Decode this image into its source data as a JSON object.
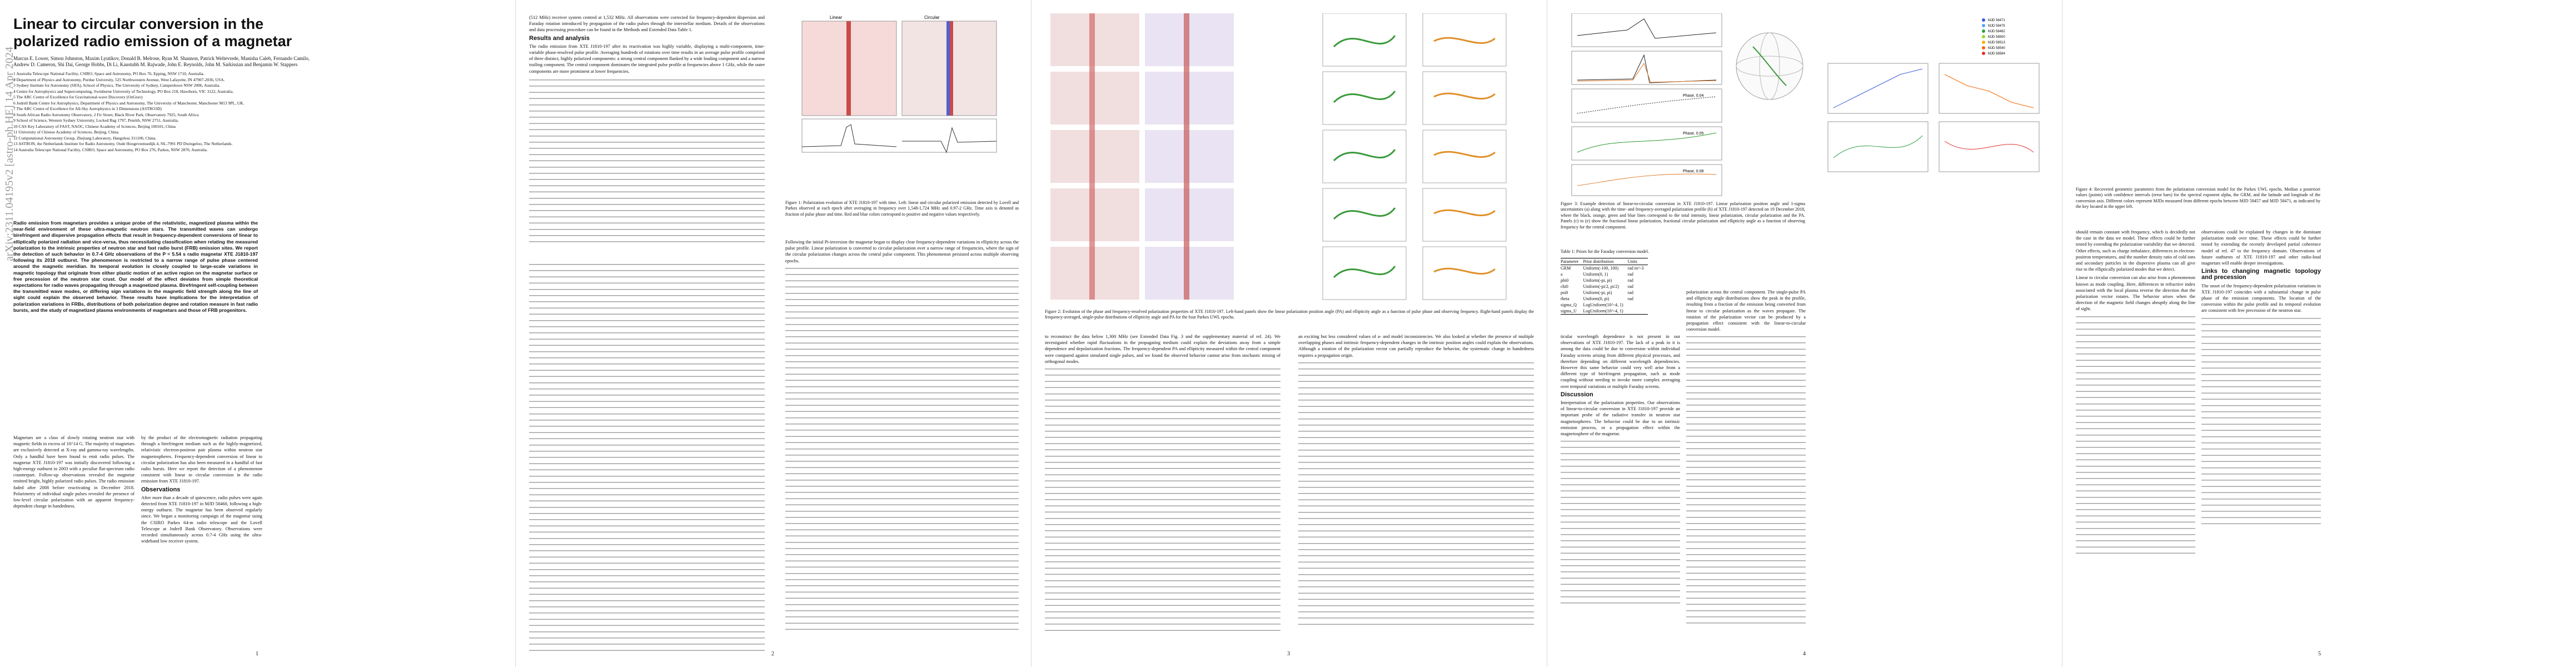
{
  "arxiv_stamp": "arXiv:2311.04195v2  [astro-ph.HE]  14 Apr 2024",
  "title": "Linear to circular conversion in the polarized radio emission of a magnetar",
  "authors": "Marcus E. Lower, Simon Johnston, Maxim Lyutikov, Donald B. Melrose, Ryan M. Shannon, Patrick Weltevrede, Manisha Caleb, Fernando Camilo, Andrew D. Cameron, Shi Dai, George Hobbs, Di Li, Kaustubh M. Rajwade, John E. Reynolds, John M. Sarkissian and Benjamin W. Stappers",
  "affiliations": [
    "Australia Telescope National Facility, CSIRO, Space and Astronomy, PO Box 76, Epping, NSW 1710, Australia.",
    "Department of Physics and Astronomy, Purdue University, 525 Northwestern Avenue, West Lafayette, IN 47907-2036, USA.",
    "Sydney Institute for Astronomy (SIfA), School of Physics, The University of Sydney, Camperdown NSW 2006, Australia.",
    "Centre for Astrophysics and Supercomputing, Swinburne University of Technology, PO Box 218, Hawthorn, VIC 3122, Australia.",
    "The ARC Centre of Excellence for Gravitational-wave Discovery (OzGrav)",
    "Jodrell Bank Centre for Astrophysics, Department of Physics and Astronomy, The University of Manchester, Manchester M13 9PL, UK.",
    "The ARC Centre of Excellence for All-Sky Astrophysics in 3 Dimensions (ASTRO3D)",
    "South African Radio Astronomy Observatory, 2 Fir Street, Black River Park, Observatory 7925, South Africa",
    "School of Science, Western Sydney University, Locked Bag 1797, Penrith, NSW 2751, Australia.",
    "CAS Key Laboratory of FAST, NAOC, Chinese Academy of Sciences, Beijing 100101, China",
    "University of Chinese Academy of Sciences, Beijing, China.",
    "Computational Astronomy Group, Zhejiang Laboratory, Hangzhou 311100, China.",
    "ASTRON, the Netherlands Institute for Radio Astronomy, Oude Hoogeveensedijk 4, NL-7991 PD Dwingeloo, The Netherlands.",
    "Australia Telescope National Facility, CSIRO, Space and Astronomy, PO Box 276, Parkes, NSW 2870, Australia."
  ],
  "abstract": "Radio emission from magnetars provides a unique probe of the relativistic, magnetized plasma within the near-field environment of these ultra-magnetic neutron stars. The transmitted waves can undergo birefringent and dispersive propagation effects that result in frequency-dependent conversions of linear to elliptically polarized radiation and vice-versa, thus necessitating classification when relating the measured polarization to the intrinsic properties of neutron star and fast radio burst (FRB) emission sites. We report the detection of such behavior in 0.7-4 GHz observations of the P = 5.54 s radio magnetar XTE J1810-197 following its 2018 outburst. The phenomenon is restricted to a narrow range of pulse phase centered around the magnetic meridian. Its temporal evolution is closely coupled to large-scale variations in magnetic topology that originate from either plastic motion of an active region on the magnetar surface or free precession of the neutron star crust. Our model of the effect deviates from simple theoretical expectations for radio waves propagating through a magnetized plasma. Birefringent self-coupling between the transmitted wave modes, or differing sign variations in the magnetic field strength along the line of sight could explain the observed behavior. These results have implications for the interpretation of polarization variations in FRBs, distributions of both polarization degree and rotation measure in fast radio bursts, and the study of magnetized plasma environments of magnetars and those of FRB progenitors.",
  "page1": {
    "col1_para": "Magnetars are a class of slowly rotating neutron star with magnetic fields in excess of 10^14 G. The majority of magnetars are exclusively detected at X-ray and gamma-ray wavelengths. Only a handful have been found to emit radio pulses. The magnetar XTE J1810-197 was initially discovered following a high-energy outburst in 2003 with a peculiar flat-spectrum radio counterpart. Follow-up observations revealed the magnetar emitted bright, highly polarized radio pulses. The radio emission faded after 2008 before reactivating in December 2018. Polarimetry of individual single pulses revealed the presence of low-level circular polarization with an apparent frequency-dependent change in handedness.",
    "col2_para": "by the product of the electromagnetic radiation propagating through a birefringent medium such as the highly-magnetized, relativistic electron-positron pair plasma within neutron star magnetospheres. Frequency-dependent conversion of linear to circular polarization has also been measured in a handful of fast radio bursts. Here we report the detection of a phenomenon consistent with linear to circular conversion in the radio emission from XTE J1810-197.",
    "obs_head": "Observations",
    "obs_para": "After more than a decade of quiescence, radio pulses were again detected from XTE J1810-197 in MJD 58460, following a high-energy outburst. The magnetar has been observed regularly since. We began a monitoring campaign of the magnetar using the CSIRO Parkes 64-m radio telescope and the Lovell Telescope at Jodrell Bank Observatory. Observations were recorded simultaneously across 0.7-4 GHz using the ultra-wideband low receiver system."
  },
  "page2": {
    "col1_para": "(512 MHz) receiver system centred at 1,532 MHz. All observations were corrected for frequency-dependent dispersion and Faraday rotation introduced by propagation of the radio pulses through the interstellar medium. Details of the observations and data processing procedure can be found in the Methods and Extended Data Table 1.",
    "results_head": "Results and analysis",
    "results_para": "The radio emission from XTE J1810-197 after its reactivation was highly variable, displaying a multi-component, time-variable phase-resolved pulse profile. Averaging hundreds of rotations over time results in an average pulse profile comprised of three distinct, highly polarized components: a strong central component flanked by a wide leading component and a narrow trailing component. The central component dominates the integrated pulse profile at frequencies above 1 GHz, while the outer components are more prominent at lower frequencies.",
    "col2_para": "Following the initial Pi-inversion the magnetar began to display clear frequency-dependent variations in ellipticity across the pulse profile. Linear polarization is converted to circular polarization over a narrow range of frequencies, where the sign of the circular polarization changes across the central pulse component. This phenomenon persisted across multiple observing epochs.",
    "fig1_caption": "Figure 1: Polarization evolution of XTE J1810-197 with time. Left: linear and circular polarized emission detected by Lovell and Parkes observed at each epoch after averaging in frequency over 1,548-1,724 MHz and 0.97-2 GHz. Time axis is denoted as fraction of pulse phase and time. Red and blue colors correspond to positive and negative values respectively.",
    "fig1_labels": [
      "Linear",
      "Circular"
    ]
  },
  "page3": {
    "fig2_caption": "Figure 2: Evolution of the phase and frequency-resolved polarization properties of XTE J1810-197. Left-hand panels show the linear polarization position angle (PA) and ellipticity angle as a function of pulse phase and observing frequency. Right-hand panels display the frequency-averaged, single-pulse distributions of ellipticity angle and PA for the four Parkes UWL epochs.",
    "col1_para": "to reconstruct the data below 1,300 MHz (see Extended Data Fig. 3 and the supplementary material of ref. 24). We investigated whether rapid fluctuations in the propagating medium could explain the deviations away from a simple dependence and depolarization fractions. The frequency-dependent PA and ellipticity measured within the central component were compared against simulated single pulses, and we found the observed behavior cannot arise from stochastic mixing of orthogonal modes.",
    "col2_para": "an exciting but less considered values of a- and model inconsistencies. We also looked at whether the presence of multiple overlapping phases and intrinsic frequency-dependent changes in the intrinsic position angles could explain the observations. Although a rotation of the polarization vector can partially reproduce the behavior, the systematic change in handedness requires a propagation origin."
  },
  "page4": {
    "fig3_caption": "Figure 3: Example detection of linear-to-circular conversion in XTE J1810-197. Linear polarization position angle and 1-sigma uncertainties (a) along with the time- and frequency-averaged polarization profile (b) of XTE J1810-197 detected on 19 December 2018, where the black, orange, green and blue lines correspond to the total intensity, linear polarization, circular polarization and the PA. Panels (c) to (e) show the fractional linear polarization, fractional circular polarization and ellipticity angle as a function of observing frequency for the central component.",
    "fig3_labels": [
      "Phase, 0.04",
      "Phase, 0.05",
      "Phase, 0.08"
    ],
    "table_caption": "Table 1: Priors for the Faraday conversion model.",
    "table_headers": [
      "Parameter",
      "Prior distribution",
      "Units"
    ],
    "table_rows": [
      [
        "GRM",
        "Uniform(-100, 100)",
        "rad m^-3"
      ],
      [
        "a",
        "Uniform(0, 1)",
        "rad"
      ],
      [
        "phi0",
        "Uniform(-pi, pi)",
        "rad"
      ],
      [
        "chi0",
        "Uniform(-pi/2, pi/2)",
        "rad"
      ],
      [
        "psi0",
        "Uniform(-pi, pi)",
        "rad"
      ],
      [
        "theta",
        "Uniform(0, pi)",
        "rad"
      ],
      [
        "sigma_Q",
        "LogUniform(10^-4, 1)",
        ""
      ],
      [
        "sigma_U",
        "LogUniform(10^-4, 1)",
        ""
      ]
    ],
    "col1_para": "ticular wavelength dependence is not present in our observations of XTE J1810-197. The lack of a peak in it is among the data could be due to conversion within individual Faraday screens arising from different physical processes, and therefore depending on different wavelength dependencies. However this same behavior could very well arise from a different type of birefringent propagation, such as mode coupling without needing to invoke more complex averaging over temporal variations or multiple Faraday screens.",
    "discussion_head": "Discussion",
    "discussion_para": "Interpretation of the polarization properties. Our observations of linear-to-circular conversion in XTE J1810-197 provide an important probe of the radiative transfer in neutron star magnetospheres. The behavior could be due to an intrinsic emission process, or a propagation effect within the magnetosphere of the magnetar.",
    "col2_para": "polarization across the central component. The single-pulse PA and ellipticity angle distributions show the peak in the profile, resulting from a fraction of the emission being converted from linear to circular polarization as the waves propagate. The rotation of the polarization vector can be produced by a propagation effect consistent with the linear-to-circular conversion model.",
    "fig4_legend": [
      "MJD 58471",
      "MJD 58475",
      "MJD 58482",
      "MJD 58500",
      "MJD 58513",
      "MJD 58540",
      "MJD 58584"
    ]
  },
  "page5": {
    "fig5_caption": "Figure 4: Recovered geometric parameters from the polarization conversion model for the Parkes UWL epochs. Median a posteriori values (points) with confidence intervals (error bars) for the spectral exponent alpha, the GRM, and the latitude and longitude of the conversion axis. Different colors represent MJDs measured from different epochs between MJD 58457 and MJD 58471, as indicated by the key located in the upper left.",
    "col1_para": "should remain constant with frequency, which is decidedly not the case in the data we model. These effects could be further tested by extending the polarization variability that we detected. Other effects, such as charge imbalance, differences in electron-positron temperatures, and the number density ratio of cold ions and secondary particles in the dispersive plasma can all give rise to the elliptically polarized modes that we detect.",
    "col1_para2": "Linear to circular conversion can also arise from a phenomenon known as mode coupling. Here, differences in refractive index associated with the local plasma reverse the direction that the polarization vector rotates. The behavior arises when the direction of the magnetic field changes abruptly along the line of sight.",
    "col2_para": "observations could be explained by changes in the dominant polarization mode over time. These effects could be further tested by extending the recently developed partial coherence model of ref. 47 to the frequency domain. Observations of future outbursts of XTE J1810-197 and other radio-loud magnetars will enable deeper investigations.",
    "col2_head": "Links to changing magnetic topology and precession",
    "col2_para2": "The onset of the frequency-dependent polarization variations in XTE J1810-197 coincides with a substantial change in pulse phase of the emission components. The location of the conversion within the pulse profile and its temporal evolution are consistent with free precession of the neutron star."
  },
  "page_numbers": [
    "1",
    "2",
    "3",
    "4",
    "5"
  ]
}
